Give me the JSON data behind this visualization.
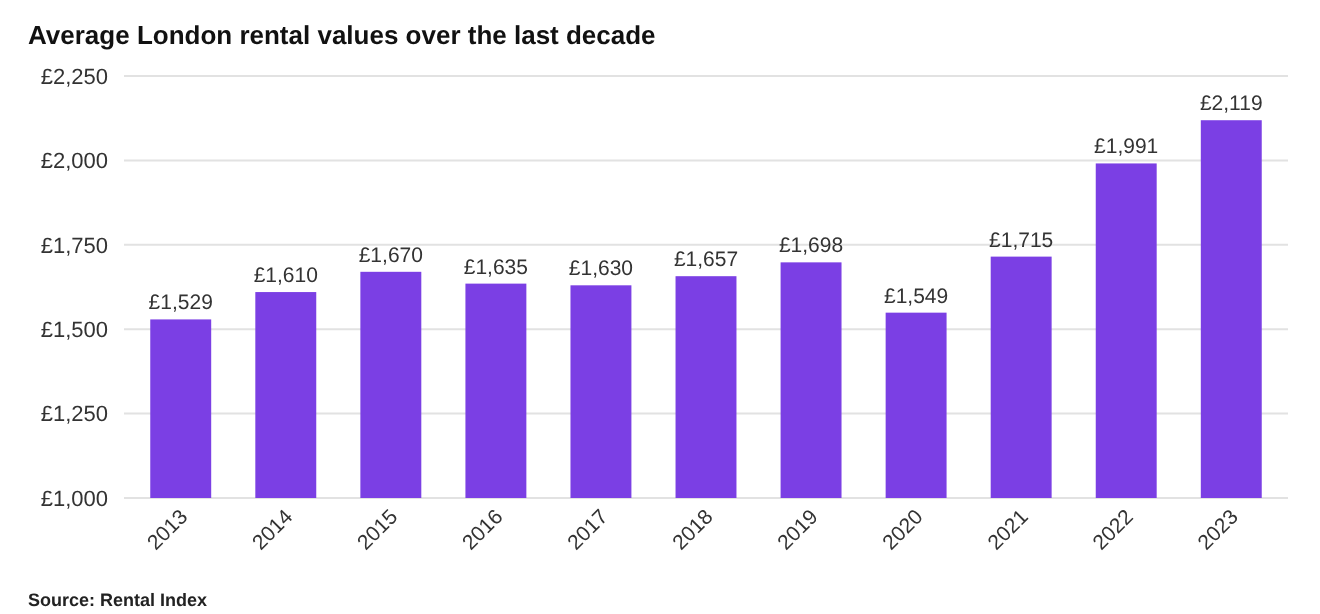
{
  "chart_data": {
    "type": "bar",
    "title": "Average London rental values over the last decade",
    "categories": [
      "2013",
      "2014",
      "2015",
      "2016",
      "2017",
      "2018",
      "2019",
      "2020",
      "2021",
      "2022",
      "2023"
    ],
    "values": [
      1529,
      1610,
      1670,
      1635,
      1630,
      1657,
      1698,
      1549,
      1715,
      1991,
      2119
    ],
    "value_labels": [
      "£1,529",
      "£1,610",
      "£1,670",
      "£1,635",
      "£1,630",
      "£1,657",
      "£1,698",
      "£1,549",
      "£1,715",
      "£1,991",
      "£2,119"
    ],
    "color": "#7b3fe4",
    "ylim": [
      1000,
      2250
    ],
    "yticks": [
      {
        "value": 1000,
        "label": "£1,000"
      },
      {
        "value": 1250,
        "label": "£1,250"
      },
      {
        "value": 1500,
        "label": "£1,500"
      },
      {
        "value": 1750,
        "label": "£1,750"
      },
      {
        "value": 2000,
        "label": "£2,000"
      },
      {
        "value": 2250,
        "label": "£2,250"
      }
    ],
    "grid": "y",
    "annotations": [
      "Source: Rental Index"
    ]
  }
}
